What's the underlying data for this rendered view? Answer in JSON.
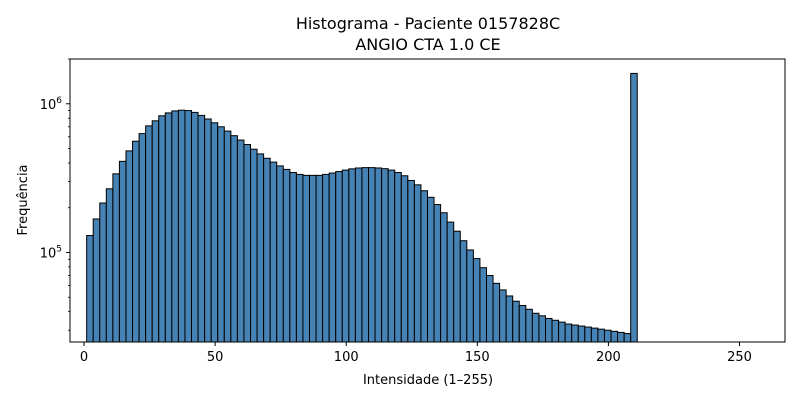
{
  "chart_data": {
    "type": "bar",
    "title": "Histograma - Paciente 0157828C",
    "subtitle": "ANGIO CTA 1.0 CE",
    "xlabel": "Intensidade (1–255)",
    "ylabel": "Frequência",
    "yscale": "log",
    "xlim": [
      -5.35,
      267.35
    ],
    "ylim": [
      25000,
      2000000
    ],
    "xticks": [
      0,
      50,
      100,
      150,
      200,
      250
    ],
    "yticks": [
      {
        "value": 100000,
        "base": "10",
        "exp": "5"
      },
      {
        "value": 1000000,
        "base": "10",
        "exp": "6"
      }
    ],
    "grid": false,
    "legend": "none",
    "bar_color": "#4682b4",
    "edge_color": "#000000",
    "bin_start": 1,
    "bin_width": 2.5,
    "values": [
      130000,
      168000,
      215000,
      268000,
      338000,
      410000,
      482000,
      560000,
      630000,
      710000,
      768000,
      830000,
      868000,
      895000,
      905000,
      900000,
      875000,
      835000,
      790000,
      745000,
      700000,
      655000,
      610000,
      570000,
      532000,
      495000,
      460000,
      430000,
      405000,
      382000,
      362000,
      345000,
      335000,
      330000,
      330000,
      330000,
      335000,
      342000,
      350000,
      358000,
      365000,
      370000,
      372000,
      372000,
      370000,
      366000,
      358000,
      345000,
      328000,
      305000,
      285000,
      260000,
      235000,
      210000,
      185000,
      160000,
      139000,
      120000,
      104000,
      91000,
      79000,
      70000,
      62000,
      56000,
      51000,
      47000,
      44000,
      41500,
      39000,
      37500,
      36000,
      35000,
      34000,
      33000,
      32500,
      32000,
      31500,
      31000,
      30500,
      30000,
      29500,
      29000,
      28500,
      1600000
    ]
  }
}
